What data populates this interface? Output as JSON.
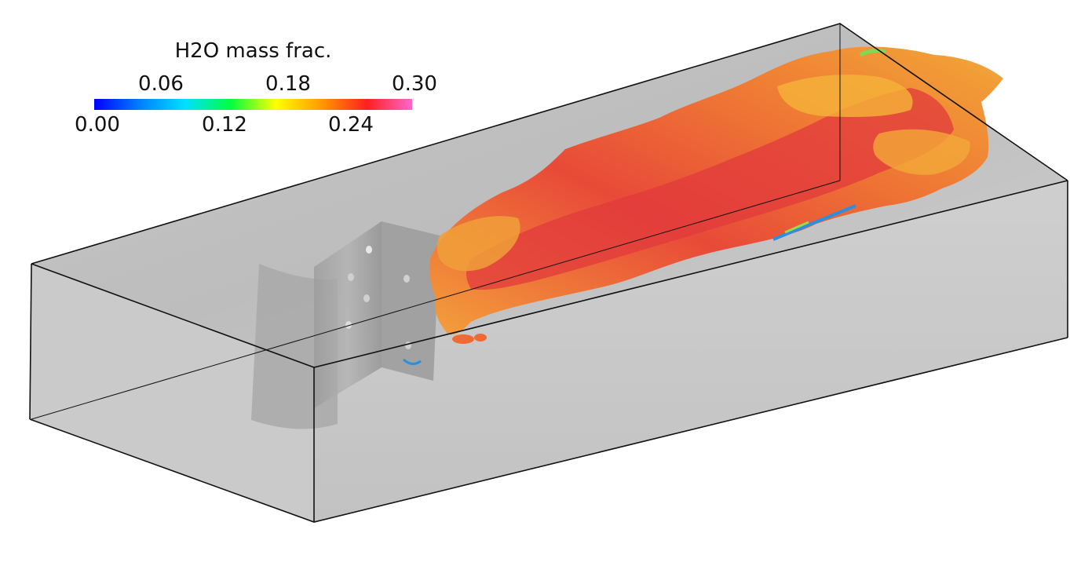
{
  "colorbar": {
    "title": "H2O mass frac.",
    "min": 0.0,
    "max": 0.3,
    "ticks_top": [
      "0.06",
      "0.18",
      "0.30"
    ],
    "ticks_bottom": [
      "0.00",
      "0.12",
      "0.24"
    ],
    "colormap": [
      "#0000ff",
      "#0080ff",
      "#00e0ff",
      "#00ff40",
      "#ffff00",
      "#ff9a00",
      "#ff2020",
      "#ff66cc"
    ]
  },
  "scene": {
    "background": "#ffffff",
    "domain_fill": "#c9c9c9",
    "flame_colors": [
      "#f29a30",
      "#e83a3a",
      "#f6b43a"
    ]
  }
}
